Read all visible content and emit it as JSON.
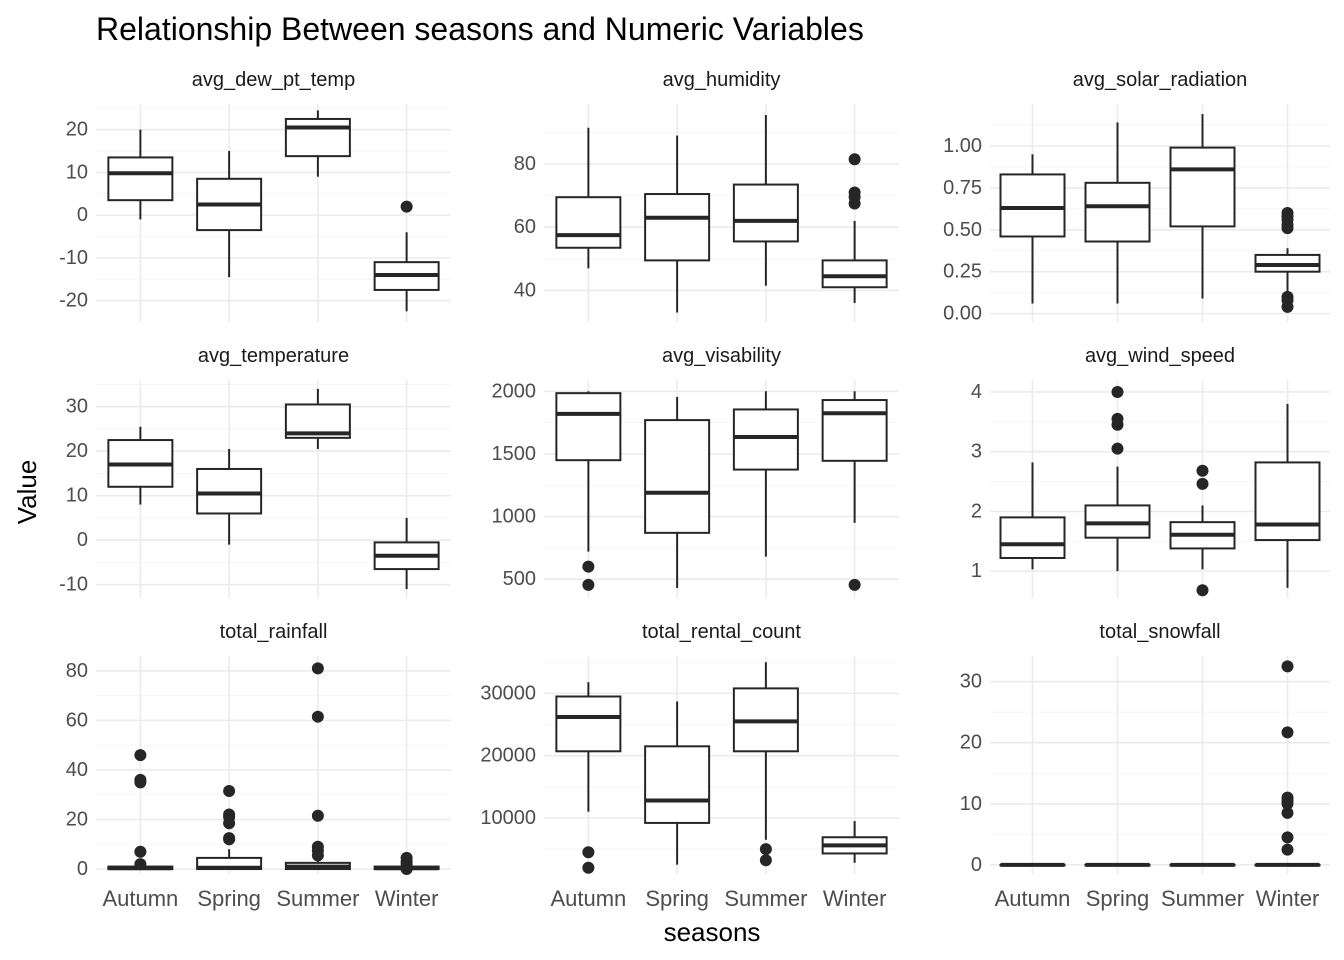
{
  "chart_data": {
    "type": "boxplot",
    "title": "Relationship Between seasons and Numeric Variables",
    "xlabel": "seasons",
    "ylabel": "Value",
    "categories": [
      "Autumn",
      "Spring",
      "Summer",
      "Winter"
    ],
    "facets": [
      {
        "name": "avg_dew_pt_temp",
        "ylim": [
          -25,
          26
        ],
        "ticks": [
          -20,
          -10,
          0,
          10,
          20
        ],
        "tick_labels": [
          "-20",
          "-10",
          "0",
          "10",
          "20"
        ],
        "boxes": [
          {
            "whisker_low": -1,
            "q1": 3.5,
            "median": 9.8,
            "q3": 13.5,
            "whisker_high": 20,
            "outliers": []
          },
          {
            "whisker_low": -14.5,
            "q1": -3.5,
            "median": 2.5,
            "q3": 8.5,
            "whisker_high": 15,
            "outliers": []
          },
          {
            "whisker_low": 9,
            "q1": 13.8,
            "median": 20.5,
            "q3": 22.5,
            "whisker_high": 24.5,
            "outliers": []
          },
          {
            "whisker_low": -22.5,
            "q1": -17.5,
            "median": -14,
            "q3": -11,
            "whisker_high": -4,
            "outliers": [
              2
            ]
          }
        ]
      },
      {
        "name": "avg_humidity",
        "ylim": [
          30,
          99
        ],
        "ticks": [
          40,
          60,
          80
        ],
        "tick_labels": [
          "40",
          "60",
          "80"
        ],
        "boxes": [
          {
            "whisker_low": 47,
            "q1": 53.5,
            "median": 57.5,
            "q3": 69.5,
            "whisker_high": 91.5,
            "outliers": []
          },
          {
            "whisker_low": 33,
            "q1": 49.5,
            "median": 63,
            "q3": 70.5,
            "whisker_high": 89,
            "outliers": []
          },
          {
            "whisker_low": 41.5,
            "q1": 55.5,
            "median": 62,
            "q3": 73.5,
            "whisker_high": 95.5,
            "outliers": []
          },
          {
            "whisker_low": 36,
            "q1": 41,
            "median": 44.5,
            "q3": 49.5,
            "whisker_high": 62,
            "outliers": [
              81.5,
              71,
              69.5,
              67.5
            ]
          }
        ]
      },
      {
        "name": "avg_solar_radiation",
        "ylim": [
          -0.05,
          1.25
        ],
        "ticks": [
          0,
          0.25,
          0.5,
          0.75,
          1
        ],
        "tick_labels": [
          "0.00",
          "0.25",
          "0.50",
          "0.75",
          "1.00"
        ],
        "boxes": [
          {
            "whisker_low": 0.06,
            "q1": 0.46,
            "median": 0.63,
            "q3": 0.83,
            "whisker_high": 0.95,
            "outliers": []
          },
          {
            "whisker_low": 0.06,
            "q1": 0.43,
            "median": 0.64,
            "q3": 0.78,
            "whisker_high": 1.14,
            "outliers": []
          },
          {
            "whisker_low": 0.09,
            "q1": 0.52,
            "median": 0.86,
            "q3": 0.99,
            "whisker_high": 1.19,
            "outliers": []
          },
          {
            "whisker_low": 0.13,
            "q1": 0.25,
            "median": 0.29,
            "q3": 0.35,
            "whisker_high": 0.39,
            "outliers": [
              0.6,
              0.58,
              0.56,
              0.53,
              0.51,
              0.1,
              0.08,
              0.04
            ]
          }
        ]
      },
      {
        "name": "avg_temperature",
        "ylim": [
          -13,
          36
        ],
        "ticks": [
          -10,
          0,
          10,
          20,
          30
        ],
        "tick_labels": [
          "-10",
          "0",
          "10",
          "20",
          "30"
        ],
        "boxes": [
          {
            "whisker_low": 8,
            "q1": 12,
            "median": 17,
            "q3": 22.5,
            "whisker_high": 25.5,
            "outliers": []
          },
          {
            "whisker_low": -1,
            "q1": 6,
            "median": 10.5,
            "q3": 16,
            "whisker_high": 20.5,
            "outliers": []
          },
          {
            "whisker_low": 20.5,
            "q1": 23,
            "median": 24,
            "q3": 30.5,
            "whisker_high": 34,
            "outliers": []
          },
          {
            "whisker_low": -11,
            "q1": -6.5,
            "median": -3.5,
            "q3": -0.5,
            "whisker_high": 5,
            "outliers": []
          }
        ]
      },
      {
        "name": "avg_visability",
        "ylim": [
          350,
          2090
        ],
        "ticks": [
          500,
          1000,
          1500,
          2000
        ],
        "tick_labels": [
          "500",
          "1000",
          "1500",
          "2000"
        ],
        "boxes": [
          {
            "whisker_low": 720,
            "q1": 1450,
            "median": 1820,
            "q3": 1985,
            "whisker_high": 2000,
            "outliers": [
              600,
              455
            ]
          },
          {
            "whisker_low": 430,
            "q1": 870,
            "median": 1190,
            "q3": 1770,
            "whisker_high": 1955,
            "outliers": []
          },
          {
            "whisker_low": 680,
            "q1": 1375,
            "median": 1635,
            "q3": 1855,
            "whisker_high": 2000,
            "outliers": []
          },
          {
            "whisker_low": 950,
            "q1": 1445,
            "median": 1825,
            "q3": 1930,
            "whisker_high": 2000,
            "outliers": [
              455
            ]
          }
        ]
      },
      {
        "name": "avg_wind_speed",
        "ylim": [
          0.55,
          4.2
        ],
        "ticks": [
          1,
          2,
          3,
          4
        ],
        "tick_labels": [
          "1",
          "2",
          "3",
          "4"
        ],
        "boxes": [
          {
            "whisker_low": 1.03,
            "q1": 1.22,
            "median": 1.45,
            "q3": 1.9,
            "whisker_high": 2.82,
            "outliers": []
          },
          {
            "whisker_low": 1,
            "q1": 1.56,
            "median": 1.8,
            "q3": 2.1,
            "whisker_high": 2.75,
            "outliers": [
              4,
              3.55,
              3.45,
              3.05
            ]
          },
          {
            "whisker_low": 1.03,
            "q1": 1.38,
            "median": 1.61,
            "q3": 1.82,
            "whisker_high": 2.1,
            "outliers": [
              2.68,
              2.46,
              0.68
            ]
          },
          {
            "whisker_low": 0.72,
            "q1": 1.52,
            "median": 1.78,
            "q3": 2.82,
            "whisker_high": 3.8,
            "outliers": []
          }
        ]
      },
      {
        "name": "total_rainfall",
        "ylim": [
          -2,
          86
        ],
        "ticks": [
          0,
          20,
          40,
          60,
          80
        ],
        "tick_labels": [
          "0",
          "20",
          "40",
          "60",
          "80"
        ],
        "boxes": [
          {
            "whisker_low": 0,
            "q1": 0,
            "median": 0.3,
            "q3": 1,
            "whisker_high": 1,
            "outliers": [
              46,
              36,
              35,
              7,
              2
            ]
          },
          {
            "whisker_low": 0,
            "q1": 0,
            "median": 0.5,
            "q3": 4.5,
            "whisker_high": 8,
            "outliers": [
              31.5,
              22,
              21,
              18.5,
              12.5,
              12
            ]
          },
          {
            "whisker_low": 0,
            "q1": 0,
            "median": 1,
            "q3": 2.5,
            "whisker_high": 5,
            "outliers": [
              81,
              61.5,
              21.5,
              9,
              7.5,
              5.5
            ]
          },
          {
            "whisker_low": 0,
            "q1": 0,
            "median": 0.3,
            "q3": 1,
            "whisker_high": 1,
            "outliers": [
              4.5,
              3,
              2,
              0
            ]
          }
        ]
      },
      {
        "name": "total_rental_count",
        "ylim": [
          1000,
          36000
        ],
        "ticks": [
          10000,
          20000,
          30000
        ],
        "tick_labels": [
          "10000",
          "20000",
          "30000"
        ],
        "boxes": [
          {
            "whisker_low": 11000,
            "q1": 20700,
            "median": 26200,
            "q3": 29500,
            "whisker_high": 31800,
            "outliers": [
              4500,
              2000
            ]
          },
          {
            "whisker_low": 2500,
            "q1": 9200,
            "median": 12800,
            "q3": 21500,
            "whisker_high": 28700,
            "outliers": []
          },
          {
            "whisker_low": 6500,
            "q1": 20700,
            "median": 25500,
            "q3": 30800,
            "whisker_high": 35000,
            "outliers": [
              5000,
              3200
            ]
          },
          {
            "whisker_low": 2800,
            "q1": 4300,
            "median": 5600,
            "q3": 6900,
            "whisker_high": 9500,
            "outliers": []
          }
        ]
      },
      {
        "name": "total_snowfall",
        "ylim": [
          -1.5,
          34.2
        ],
        "ticks": [
          0,
          10,
          20,
          30
        ],
        "tick_labels": [
          "0",
          "10",
          "20",
          "30"
        ],
        "boxes": [
          {
            "whisker_low": 0,
            "q1": 0,
            "median": 0,
            "q3": 0,
            "whisker_high": 0,
            "outliers": []
          },
          {
            "whisker_low": 0,
            "q1": 0,
            "median": 0,
            "q3": 0,
            "whisker_high": 0,
            "outliers": []
          },
          {
            "whisker_low": 0,
            "q1": 0,
            "median": 0,
            "q3": 0,
            "whisker_high": 0,
            "outliers": []
          },
          {
            "whisker_low": 0,
            "q1": 0,
            "median": 0,
            "q3": 0,
            "whisker_high": 0,
            "outliers": [
              32.5,
              21.7,
              11,
              10.5,
              10,
              8.5,
              4.5,
              2.5
            ]
          }
        ]
      }
    ]
  }
}
